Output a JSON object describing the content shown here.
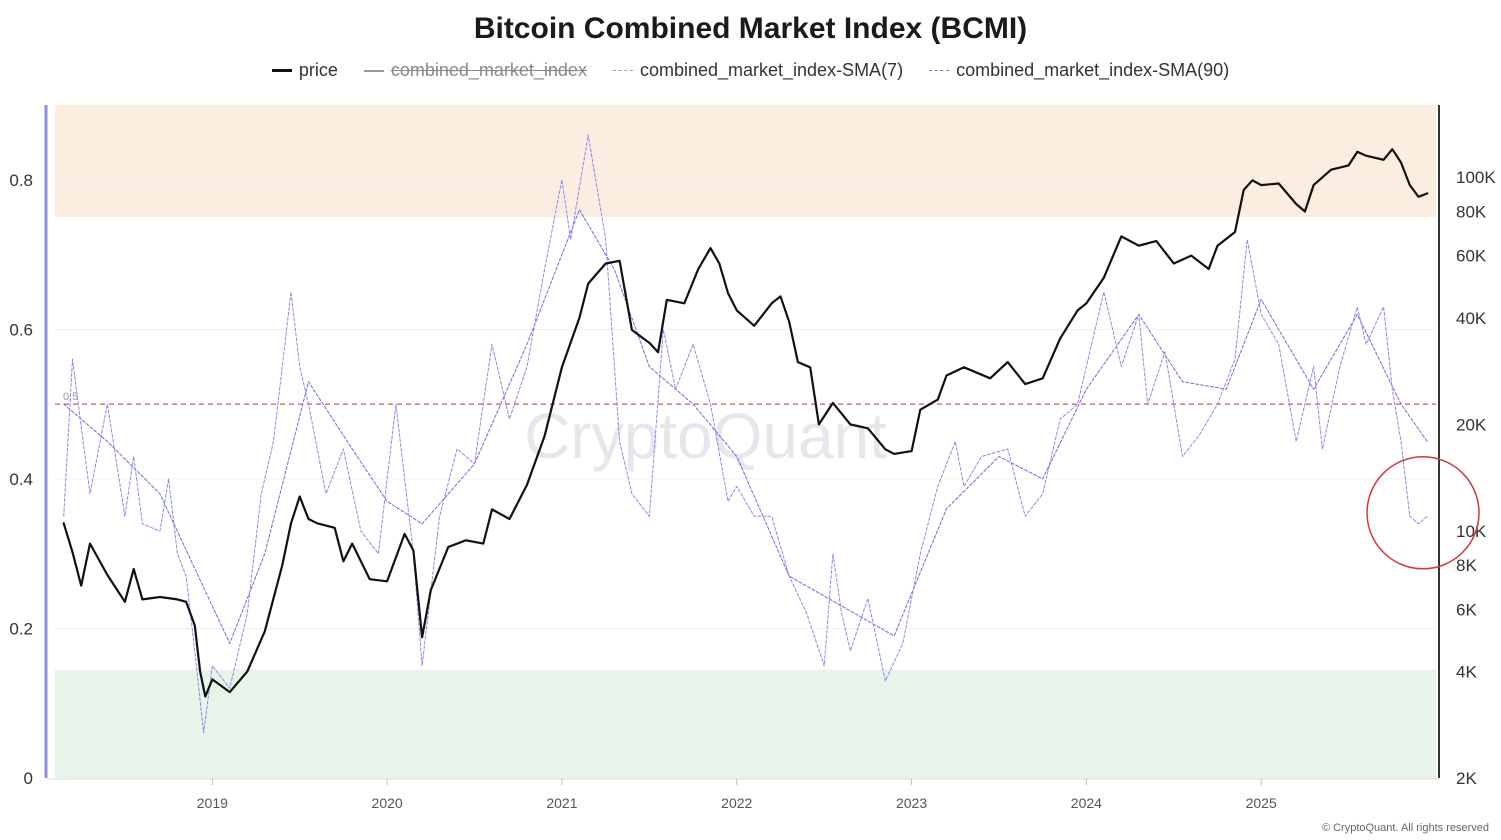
{
  "chart_data": {
    "type": "line",
    "title": "Bitcoin Combined Market Index (BCMI)",
    "watermark": "CryptoQuant",
    "copyright": "© CryptoQuant. All rights reserved",
    "reference_line": {
      "value": 0.5,
      "label": "0.5",
      "color": "#e05555"
    },
    "zones": [
      {
        "from": 0.75,
        "to": 0.9,
        "color": "#fbeee0"
      },
      {
        "from": 0.0,
        "to": 0.145,
        "color": "#e8f3ea"
      }
    ],
    "highlight_circle": {
      "date": 2025.88,
      "value": 0.36,
      "color": "#d03a3a"
    },
    "y_left": {
      "ticks": [
        0,
        0.2,
        0.4,
        0.6,
        0.8
      ],
      "tick_labels": [
        "0",
        "0.2",
        "0.4",
        "0.6",
        "0.8"
      ],
      "range": [
        0,
        0.9
      ]
    },
    "y_right": {
      "scale": "log",
      "ticks": [
        2000,
        4000,
        6000,
        8000,
        10000,
        20000,
        40000,
        60000,
        80000,
        100000
      ],
      "tick_labels": [
        "2K",
        "4K",
        "6K",
        "8K",
        "10K",
        "20K",
        "40K",
        "60K",
        "80K",
        "100K"
      ],
      "range": [
        2000,
        160000
      ]
    },
    "x": {
      "ticks": [
        2019,
        2020,
        2021,
        2022,
        2023,
        2024,
        2025
      ],
      "tick_labels": [
        "2019",
        "2020",
        "2021",
        "2022",
        "2023",
        "2024",
        "2025"
      ],
      "range": [
        2018.1,
        2026.0
      ]
    },
    "series": [
      {
        "name": "price",
        "axis": "right",
        "color": "#111111",
        "style": "solid",
        "width": 2.2,
        "points": [
          [
            2018.15,
            10500
          ],
          [
            2018.2,
            8700
          ],
          [
            2018.25,
            7000
          ],
          [
            2018.3,
            9200
          ],
          [
            2018.4,
            7500
          ],
          [
            2018.5,
            6300
          ],
          [
            2018.55,
            7800
          ],
          [
            2018.6,
            6400
          ],
          [
            2018.7,
            6500
          ],
          [
            2018.8,
            6400
          ],
          [
            2018.85,
            6300
          ],
          [
            2018.9,
            5400
          ],
          [
            2018.93,
            4000
          ],
          [
            2018.96,
            3400
          ],
          [
            2019.0,
            3800
          ],
          [
            2019.1,
            3500
          ],
          [
            2019.2,
            4000
          ],
          [
            2019.3,
            5200
          ],
          [
            2019.4,
            8000
          ],
          [
            2019.45,
            10500
          ],
          [
            2019.5,
            12500
          ],
          [
            2019.55,
            10800
          ],
          [
            2019.6,
            10500
          ],
          [
            2019.7,
            10200
          ],
          [
            2019.75,
            8200
          ],
          [
            2019.8,
            9200
          ],
          [
            2019.9,
            7300
          ],
          [
            2020.0,
            7200
          ],
          [
            2020.1,
            9800
          ],
          [
            2020.15,
            8800
          ],
          [
            2020.2,
            5000
          ],
          [
            2020.25,
            6800
          ],
          [
            2020.35,
            9000
          ],
          [
            2020.45,
            9400
          ],
          [
            2020.55,
            9200
          ],
          [
            2020.6,
            11500
          ],
          [
            2020.7,
            10800
          ],
          [
            2020.8,
            13500
          ],
          [
            2020.9,
            18500
          ],
          [
            2021.0,
            29000
          ],
          [
            2021.1,
            40000
          ],
          [
            2021.15,
            50000
          ],
          [
            2021.25,
            57000
          ],
          [
            2021.33,
            58000
          ],
          [
            2021.4,
            37000
          ],
          [
            2021.5,
            34000
          ],
          [
            2021.55,
            32000
          ],
          [
            2021.6,
            45000
          ],
          [
            2021.7,
            44000
          ],
          [
            2021.78,
            55000
          ],
          [
            2021.85,
            63000
          ],
          [
            2021.9,
            57000
          ],
          [
            2021.95,
            47000
          ],
          [
            2022.0,
            42000
          ],
          [
            2022.1,
            38000
          ],
          [
            2022.2,
            44000
          ],
          [
            2022.25,
            46000
          ],
          [
            2022.3,
            39000
          ],
          [
            2022.35,
            30000
          ],
          [
            2022.42,
            29000
          ],
          [
            2022.47,
            20000
          ],
          [
            2022.55,
            23000
          ],
          [
            2022.65,
            20000
          ],
          [
            2022.75,
            19500
          ],
          [
            2022.85,
            17000
          ],
          [
            2022.9,
            16500
          ],
          [
            2023.0,
            16800
          ],
          [
            2023.05,
            22000
          ],
          [
            2023.15,
            23500
          ],
          [
            2023.2,
            27500
          ],
          [
            2023.3,
            29000
          ],
          [
            2023.45,
            27000
          ],
          [
            2023.55,
            30000
          ],
          [
            2023.65,
            26000
          ],
          [
            2023.75,
            27000
          ],
          [
            2023.85,
            35000
          ],
          [
            2023.95,
            42000
          ],
          [
            2024.0,
            44000
          ],
          [
            2024.1,
            52000
          ],
          [
            2024.2,
            68000
          ],
          [
            2024.3,
            64000
          ],
          [
            2024.4,
            66000
          ],
          [
            2024.5,
            57000
          ],
          [
            2024.6,
            60000
          ],
          [
            2024.7,
            55000
          ],
          [
            2024.75,
            64000
          ],
          [
            2024.85,
            70000
          ],
          [
            2024.9,
            92000
          ],
          [
            2024.95,
            98000
          ],
          [
            2025.0,
            95000
          ],
          [
            2025.1,
            96000
          ],
          [
            2025.2,
            84000
          ],
          [
            2025.25,
            80000
          ],
          [
            2025.3,
            95000
          ],
          [
            2025.4,
            105000
          ],
          [
            2025.5,
            108000
          ],
          [
            2025.55,
            118000
          ],
          [
            2025.6,
            115000
          ],
          [
            2025.7,
            112000
          ],
          [
            2025.75,
            120000
          ],
          [
            2025.8,
            110000
          ],
          [
            2025.85,
            95000
          ],
          [
            2025.9,
            88000
          ],
          [
            2025.95,
            90000
          ]
        ]
      },
      {
        "name": "combined_market_index",
        "axis": "left",
        "color": "#9a9a9a",
        "style": "solid",
        "hidden": true,
        "points": []
      },
      {
        "name": "combined_market_index-SMA(7)",
        "axis": "left",
        "color": "#8a8aee",
        "style": "dashed",
        "width": 1,
        "points": [
          [
            2018.15,
            0.35
          ],
          [
            2018.2,
            0.56
          ],
          [
            2018.25,
            0.47
          ],
          [
            2018.3,
            0.38
          ],
          [
            2018.4,
            0.5
          ],
          [
            2018.5,
            0.35
          ],
          [
            2018.55,
            0.43
          ],
          [
            2018.6,
            0.34
          ],
          [
            2018.7,
            0.33
          ],
          [
            2018.75,
            0.4
          ],
          [
            2018.8,
            0.3
          ],
          [
            2018.85,
            0.27
          ],
          [
            2018.9,
            0.17
          ],
          [
            2018.95,
            0.06
          ],
          [
            2019.0,
            0.15
          ],
          [
            2019.1,
            0.12
          ],
          [
            2019.2,
            0.22
          ],
          [
            2019.28,
            0.38
          ],
          [
            2019.35,
            0.45
          ],
          [
            2019.45,
            0.65
          ],
          [
            2019.5,
            0.55
          ],
          [
            2019.55,
            0.5
          ],
          [
            2019.65,
            0.38
          ],
          [
            2019.75,
            0.44
          ],
          [
            2019.85,
            0.33
          ],
          [
            2019.95,
            0.3
          ],
          [
            2020.05,
            0.5
          ],
          [
            2020.15,
            0.3
          ],
          [
            2020.2,
            0.15
          ],
          [
            2020.3,
            0.35
          ],
          [
            2020.4,
            0.44
          ],
          [
            2020.5,
            0.42
          ],
          [
            2020.6,
            0.58
          ],
          [
            2020.7,
            0.48
          ],
          [
            2020.8,
            0.55
          ],
          [
            2020.9,
            0.68
          ],
          [
            2021.0,
            0.8
          ],
          [
            2021.05,
            0.72
          ],
          [
            2021.15,
            0.86
          ],
          [
            2021.25,
            0.72
          ],
          [
            2021.33,
            0.45
          ],
          [
            2021.4,
            0.38
          ],
          [
            2021.5,
            0.35
          ],
          [
            2021.58,
            0.6
          ],
          [
            2021.65,
            0.52
          ],
          [
            2021.75,
            0.58
          ],
          [
            2021.85,
            0.5
          ],
          [
            2021.95,
            0.37
          ],
          [
            2022.0,
            0.39
          ],
          [
            2022.1,
            0.35
          ],
          [
            2022.2,
            0.35
          ],
          [
            2022.3,
            0.27
          ],
          [
            2022.4,
            0.22
          ],
          [
            2022.5,
            0.15
          ],
          [
            2022.55,
            0.3
          ],
          [
            2022.6,
            0.22
          ],
          [
            2022.65,
            0.17
          ],
          [
            2022.75,
            0.24
          ],
          [
            2022.85,
            0.13
          ],
          [
            2022.95,
            0.18
          ],
          [
            2023.05,
            0.3
          ],
          [
            2023.15,
            0.39
          ],
          [
            2023.25,
            0.45
          ],
          [
            2023.3,
            0.39
          ],
          [
            2023.4,
            0.43
          ],
          [
            2023.55,
            0.44
          ],
          [
            2023.65,
            0.35
          ],
          [
            2023.75,
            0.38
          ],
          [
            2023.85,
            0.48
          ],
          [
            2023.95,
            0.5
          ],
          [
            2024.05,
            0.6
          ],
          [
            2024.1,
            0.65
          ],
          [
            2024.2,
            0.55
          ],
          [
            2024.3,
            0.62
          ],
          [
            2024.35,
            0.5
          ],
          [
            2024.45,
            0.57
          ],
          [
            2024.55,
            0.43
          ],
          [
            2024.65,
            0.46
          ],
          [
            2024.75,
            0.5
          ],
          [
            2024.85,
            0.56
          ],
          [
            2024.92,
            0.72
          ],
          [
            2025.0,
            0.62
          ],
          [
            2025.1,
            0.58
          ],
          [
            2025.2,
            0.45
          ],
          [
            2025.3,
            0.55
          ],
          [
            2025.35,
            0.44
          ],
          [
            2025.45,
            0.55
          ],
          [
            2025.55,
            0.63
          ],
          [
            2025.6,
            0.58
          ],
          [
            2025.7,
            0.63
          ],
          [
            2025.75,
            0.52
          ],
          [
            2025.8,
            0.45
          ],
          [
            2025.85,
            0.35
          ],
          [
            2025.9,
            0.34
          ],
          [
            2025.95,
            0.35
          ]
        ]
      },
      {
        "name": "combined_market_index-SMA(90)",
        "axis": "left",
        "color": "#6a6ae6",
        "style": "dashed",
        "width": 1,
        "points": [
          [
            2018.15,
            0.5
          ],
          [
            2018.4,
            0.45
          ],
          [
            2018.7,
            0.38
          ],
          [
            2018.9,
            0.28
          ],
          [
            2019.1,
            0.18
          ],
          [
            2019.3,
            0.3
          ],
          [
            2019.55,
            0.53
          ],
          [
            2019.8,
            0.44
          ],
          [
            2020.0,
            0.37
          ],
          [
            2020.2,
            0.34
          ],
          [
            2020.5,
            0.42
          ],
          [
            2020.8,
            0.58
          ],
          [
            2021.1,
            0.76
          ],
          [
            2021.3,
            0.68
          ],
          [
            2021.5,
            0.55
          ],
          [
            2021.75,
            0.5
          ],
          [
            2022.0,
            0.43
          ],
          [
            2022.3,
            0.27
          ],
          [
            2022.6,
            0.23
          ],
          [
            2022.9,
            0.19
          ],
          [
            2023.2,
            0.36
          ],
          [
            2023.5,
            0.43
          ],
          [
            2023.75,
            0.4
          ],
          [
            2024.0,
            0.52
          ],
          [
            2024.3,
            0.62
          ],
          [
            2024.55,
            0.53
          ],
          [
            2024.8,
            0.52
          ],
          [
            2025.0,
            0.64
          ],
          [
            2025.3,
            0.52
          ],
          [
            2025.55,
            0.62
          ],
          [
            2025.8,
            0.5
          ],
          [
            2025.95,
            0.45
          ]
        ]
      }
    ]
  },
  "legend": [
    {
      "label": "price",
      "style": "price",
      "struck": false
    },
    {
      "label": "combined_market_index",
      "style": "cmi",
      "struck": true
    },
    {
      "label": "combined_market_index-SMA(7)",
      "style": "sma7",
      "struck": false
    },
    {
      "label": "combined_market_index-SMA(90)",
      "style": "sma90",
      "struck": false
    }
  ]
}
